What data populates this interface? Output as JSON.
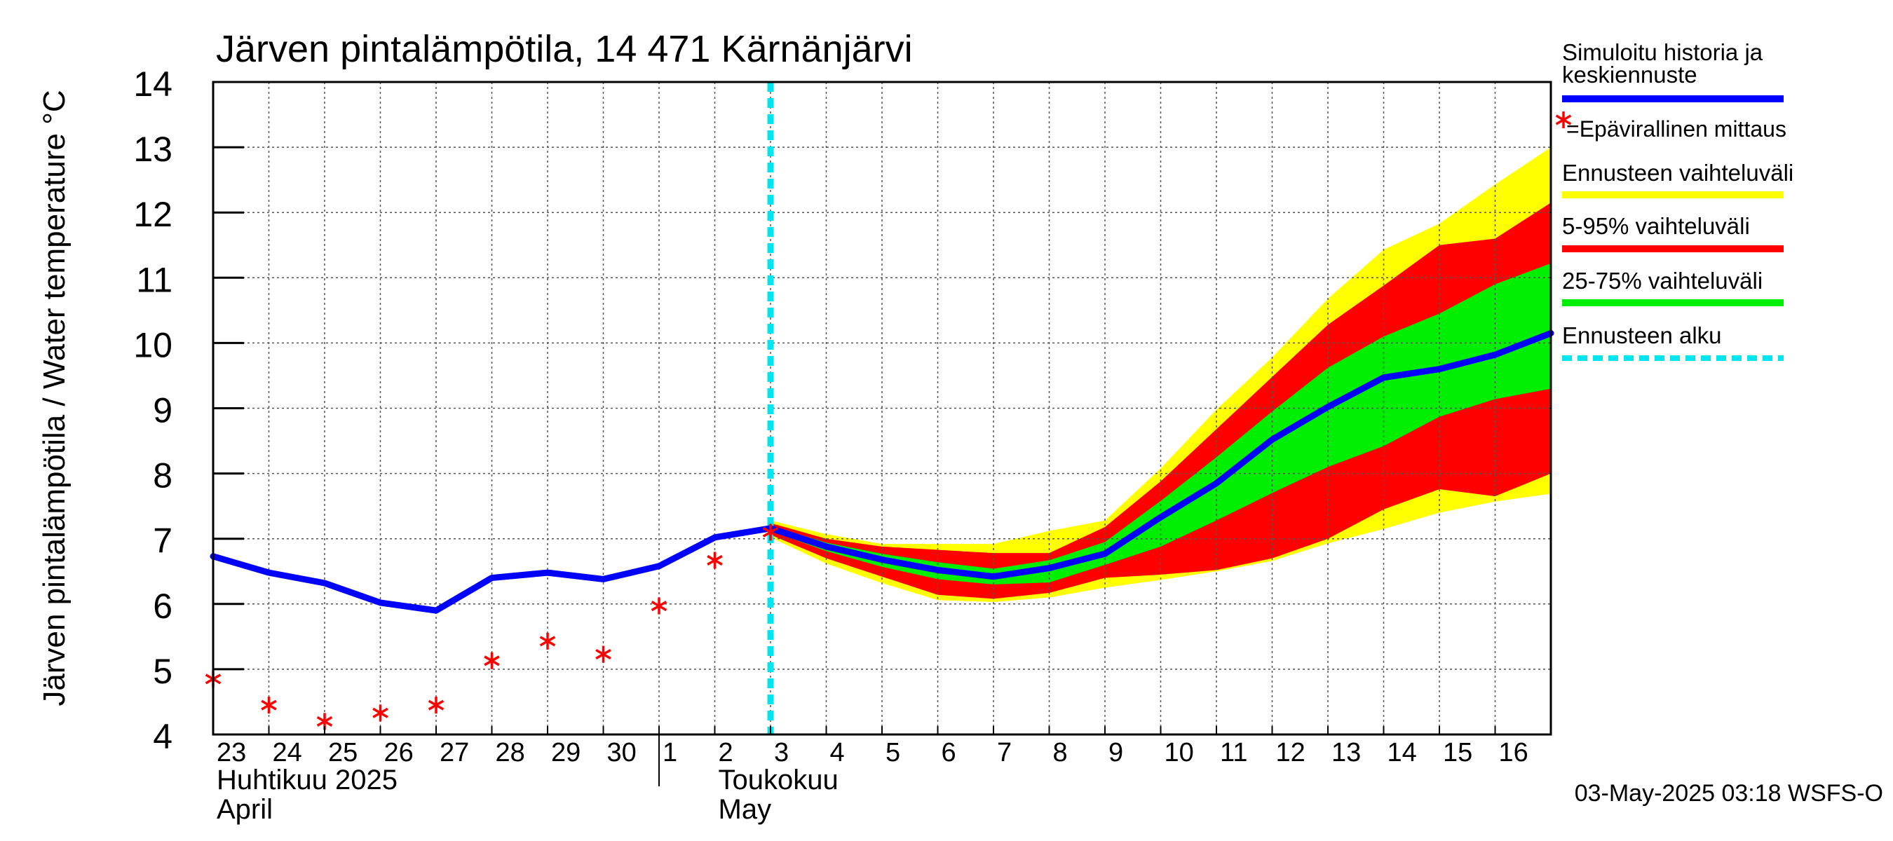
{
  "chart_data": {
    "type": "line",
    "title": "Järven pintalämpötila, 14 471 Kärnänjärvi",
    "ylabel": "Järven pintalämpötila / Water temperature °C",
    "ylim": [
      4,
      14
    ],
    "yticks": [
      4,
      5,
      6,
      7,
      8,
      9,
      10,
      11,
      12,
      13,
      14
    ],
    "xrange": [
      0,
      24
    ],
    "day_labels": [
      "23",
      "24",
      "25",
      "26",
      "27",
      "28",
      "29",
      "30",
      "1",
      "2",
      "3",
      "4",
      "5",
      "6",
      "7",
      "8",
      "9",
      "10",
      "11",
      "12",
      "13",
      "14",
      "15",
      "16"
    ],
    "month_labels": [
      {
        "fi": "Huhtikuu  2025",
        "en": "April",
        "x": 0
      },
      {
        "fi": "Toukokuu",
        "en": "May",
        "x": 9
      }
    ],
    "month_divider_x": 8,
    "forecast_start_x": 10,
    "x": [
      0,
      1,
      2,
      3,
      4,
      5,
      6,
      7,
      8,
      9,
      10,
      11,
      12,
      13,
      14,
      15,
      16,
      17,
      18,
      19,
      20,
      21,
      22,
      23,
      24
    ],
    "series": [
      {
        "name": "Simuloitu historia ja keskiennuste",
        "color": "#0000ff",
        "values": [
          6.73,
          6.48,
          6.32,
          6.02,
          5.9,
          6.4,
          6.48,
          6.38,
          6.58,
          7.02,
          7.16,
          6.88,
          6.68,
          6.52,
          6.42,
          6.55,
          6.77,
          7.33,
          7.85,
          8.52,
          9.02,
          9.47,
          9.6,
          9.82,
          10.15
        ]
      }
    ],
    "bands": [
      {
        "name": "Ennusteen vaihteluväli",
        "color": "#ffff00",
        "x_start": 10,
        "upper": [
          7.28,
          7.07,
          6.92,
          6.92,
          6.92,
          7.12,
          7.28,
          8.08,
          8.98,
          9.78,
          10.68,
          11.43,
          11.83,
          12.43,
          13.0
        ],
        "lower": [
          7.02,
          6.62,
          6.32,
          6.06,
          6.03,
          6.1,
          6.25,
          6.37,
          6.5,
          6.66,
          6.93,
          7.15,
          7.4,
          7.57,
          7.69
        ]
      },
      {
        "name": "5-95% vaihteluväli",
        "color": "#ff0000",
        "x_start": 10,
        "upper": [
          7.24,
          7.0,
          6.88,
          6.83,
          6.78,
          6.78,
          7.18,
          7.88,
          8.68,
          9.48,
          10.28,
          10.88,
          11.5,
          11.6,
          12.15
        ],
        "lower": [
          7.06,
          6.7,
          6.42,
          6.14,
          6.08,
          6.17,
          6.4,
          6.45,
          6.52,
          6.7,
          7.0,
          7.45,
          7.76,
          7.65,
          8.0
        ]
      },
      {
        "name": "25-75% vaihteluväli",
        "color": "#00ee00",
        "x_start": 10,
        "upper": [
          7.2,
          6.94,
          6.77,
          6.64,
          6.54,
          6.67,
          6.95,
          7.58,
          8.25,
          8.95,
          9.62,
          10.1,
          10.45,
          10.9,
          11.22
        ],
        "lower": [
          7.12,
          6.81,
          6.57,
          6.38,
          6.3,
          6.33,
          6.6,
          6.88,
          7.28,
          7.7,
          8.1,
          8.42,
          8.87,
          9.14,
          9.3
        ]
      }
    ],
    "measurements": {
      "name": "=Epävirallinen mittaus",
      "color": "#ff0000",
      "x": [
        0,
        1,
        2,
        3,
        4,
        5,
        6,
        7,
        8,
        9,
        10
      ],
      "y": [
        4.85,
        4.45,
        4.2,
        4.33,
        4.45,
        5.13,
        5.43,
        5.23,
        5.97,
        6.67,
        7.1
      ]
    },
    "legend": [
      {
        "label": "Simuloitu historia ja keskiennuste",
        "style": "line",
        "color": "#0000ff"
      },
      {
        "label": "=Epävirallinen mittaus",
        "style": "marker",
        "color": "#ff0000"
      },
      {
        "label": "Ennusteen vaihteluväli",
        "style": "line",
        "color": "#ffff00"
      },
      {
        "label": "5-95% vaihteluväli",
        "style": "line",
        "color": "#ff0000"
      },
      {
        "label": "25-75% vaihteluväli",
        "style": "line",
        "color": "#00ee00"
      },
      {
        "label": "Ennusteen alku",
        "style": "dashed",
        "color": "#00e5ee"
      }
    ],
    "legend_position": "right",
    "grid": true,
    "footer": "03-May-2025 03:18 WSFS-O"
  }
}
